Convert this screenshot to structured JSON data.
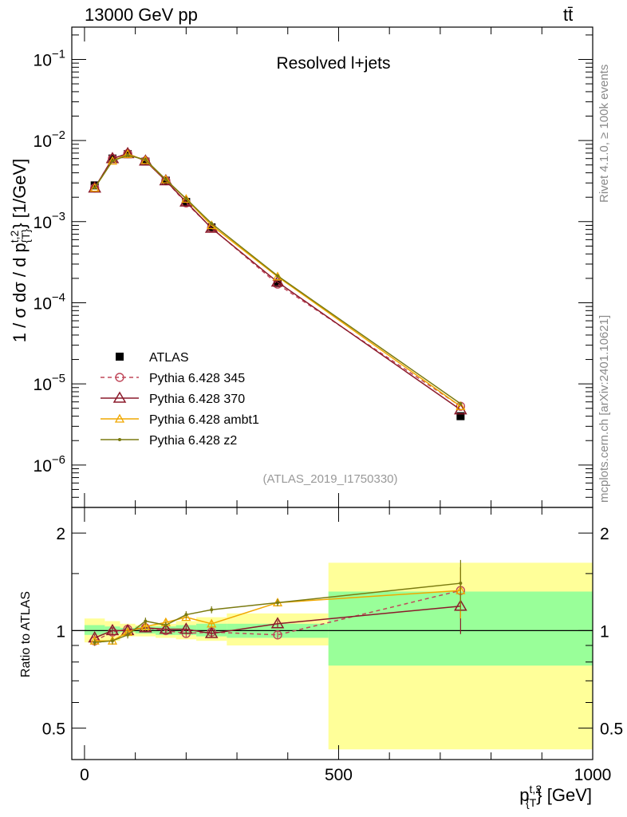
{
  "header": {
    "energy_label": "13000 GeV pp",
    "process_label": "tt̄"
  },
  "side_labels": {
    "rivet": "Rivet 4.1.0, ≥ 100k events",
    "mcplots": "mcplots.cern.ch [arXiv:2401.10621]"
  },
  "chart_data": [
    {
      "type": "line",
      "title": "Resolved l+jets",
      "analysis_id": "(ATLAS_2019_I1750330)",
      "ylabel": "1 / σ dσ / d p_{T}^{t,2} [1/GeV]",
      "ylabel_parts": {
        "prefix": "1 / σ dσ / d p",
        "sup": "t,2",
        "sub": "{T}",
        "suffix": "} [1/GeV]"
      },
      "yscale": "log",
      "ylim": [
        3e-07,
        0.25
      ],
      "xlim": [
        -25,
        1000
      ],
      "yticks": [
        {
          "value": 1e-06,
          "base": "10",
          "exp": "−6"
        },
        {
          "value": 1e-05,
          "base": "10",
          "exp": "−5"
        },
        {
          "value": 0.0001,
          "base": "10",
          "exp": "−4"
        },
        {
          "value": 0.001,
          "base": "10",
          "exp": "−3"
        },
        {
          "value": 0.01,
          "base": "10",
          "exp": "−2"
        },
        {
          "value": 0.1,
          "base": "10",
          "exp": "−1"
        }
      ],
      "x": [
        20,
        55,
        85,
        120,
        160,
        200,
        250,
        380,
        740
      ],
      "series": [
        {
          "name": "ATLAS",
          "color": "#000000",
          "marker": "square",
          "line": "none",
          "values": [
            0.0028,
            0.006,
            0.0068,
            0.0055,
            0.0032,
            0.00175,
            0.00085,
            0.000175,
            4e-06
          ]
        },
        {
          "name": "Pythia 6.428 345",
          "color": "#c0485a",
          "marker": "circle",
          "line": "dashed",
          "values": [
            0.0026,
            0.006,
            0.0069,
            0.0056,
            0.0032,
            0.0017,
            0.00084,
            0.00017,
            5.3e-06
          ]
        },
        {
          "name": "Pythia 6.428 370",
          "color": "#8b1a2b",
          "marker": "triangle",
          "line": "solid",
          "values": [
            0.0026,
            0.006,
            0.0069,
            0.0056,
            0.0032,
            0.00175,
            0.00083,
            0.00018,
            4.8e-06
          ]
        },
        {
          "name": "Pythia 6.428 ambt1",
          "color": "#f0a800",
          "marker": "triangle-small",
          "line": "solid",
          "values": [
            0.0026,
            0.0056,
            0.0068,
            0.0057,
            0.0033,
            0.0019,
            0.0009,
            0.00021,
            5.3e-06
          ]
        },
        {
          "name": "Pythia 6.428 z2",
          "color": "#7a7a10",
          "marker": "dot",
          "line": "solid",
          "values": [
            0.0026,
            0.0056,
            0.0066,
            0.0058,
            0.0033,
            0.00192,
            0.00095,
            0.000215,
            5.7e-06
          ]
        }
      ],
      "legend_position": "left-middle"
    },
    {
      "type": "line",
      "ylabel": "Ratio to ATLAS",
      "xlabel": "p_{T}^{t,2} [GeV]",
      "xlabel_parts": {
        "prefix": "p",
        "sup": "t,2",
        "sub": "{T",
        "suffix": "} [GeV]"
      },
      "xlim": [
        -25,
        1000
      ],
      "ylim": [
        0.4,
        2.4
      ],
      "yscale": "log",
      "xticks": [
        0,
        500,
        1000
      ],
      "xtick_labels": [
        "0",
        "500",
        "1000"
      ],
      "yticks": [
        0.5,
        1,
        2
      ],
      "ytick_labels": [
        "0.5",
        "1",
        "2"
      ],
      "bin_edges": [
        0,
        40,
        70,
        100,
        140,
        180,
        220,
        280,
        480,
        1000
      ],
      "band_stat": [
        [
          0.97,
          1.04
        ],
        [
          0.98,
          1.03
        ],
        [
          0.99,
          1.02
        ],
        [
          0.98,
          1.03
        ],
        [
          0.97,
          1.03
        ],
        [
          0.97,
          1.04
        ],
        [
          0.96,
          1.05
        ],
        [
          0.95,
          1.05
        ],
        [
          0.78,
          1.32
        ]
      ],
      "band_total": [
        [
          0.92,
          1.09
        ],
        [
          0.93,
          1.07
        ],
        [
          0.96,
          1.05
        ],
        [
          0.96,
          1.04
        ],
        [
          0.95,
          1.05
        ],
        [
          0.94,
          1.07
        ],
        [
          0.93,
          1.1
        ],
        [
          0.9,
          1.13
        ],
        [
          0.43,
          1.62
        ]
      ],
      "x": [
        20,
        55,
        85,
        120,
        160,
        200,
        250,
        380,
        740
      ],
      "series": [
        {
          "name": "Pythia 6.428 345",
          "color": "#c0485a",
          "marker": "circle",
          "line": "dashed",
          "values": [
            0.93,
            0.99,
            1.01,
            1.02,
            1.0,
            0.98,
            0.99,
            0.97,
            1.33
          ]
        },
        {
          "name": "Pythia 6.428 370",
          "color": "#8b1a2b",
          "marker": "triangle",
          "line": "solid",
          "values": [
            0.95,
            1.0,
            1.0,
            1.02,
            1.01,
            1.01,
            0.98,
            1.05,
            1.19
          ]
        },
        {
          "name": "Pythia 6.428 ambt1",
          "color": "#f0a800",
          "marker": "triangle-small",
          "line": "solid",
          "values": [
            0.93,
            0.93,
            0.99,
            1.03,
            1.06,
            1.1,
            1.05,
            1.22,
            1.33
          ]
        },
        {
          "name": "Pythia 6.428 z2",
          "color": "#7a7a10",
          "marker": "dot",
          "line": "solid",
          "values": [
            0.92,
            0.93,
            0.97,
            1.07,
            1.04,
            1.12,
            1.16,
            1.22,
            1.4
          ]
        }
      ]
    }
  ]
}
